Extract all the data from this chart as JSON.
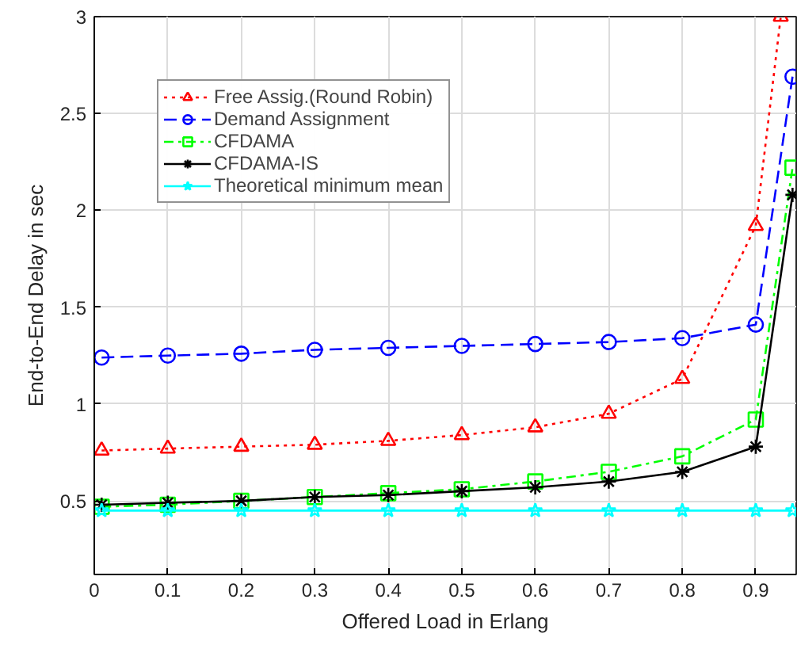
{
  "chart_data": {
    "type": "line",
    "xlabel": "Offered Load in Erlang",
    "ylabel": "End-to-End Delay in sec",
    "x": [
      0.01,
      0.1,
      0.2,
      0.3,
      0.4,
      0.5,
      0.6,
      0.7,
      0.8,
      0.9,
      0.95
    ],
    "series": [
      {
        "name": "Free Assig.(Round Robin)",
        "color": "#ff0000",
        "marker": "triangle",
        "line_style": "dotted",
        "x": [
          0.01,
          0.1,
          0.2,
          0.3,
          0.4,
          0.5,
          0.6,
          0.7,
          0.8,
          0.9,
          0.934
        ],
        "values": [
          0.76,
          0.77,
          0.78,
          0.79,
          0.81,
          0.84,
          0.88,
          0.95,
          1.13,
          1.92,
          3.0
        ]
      },
      {
        "name": "Demand Assignment",
        "color": "#0000ff",
        "marker": "circle",
        "line_style": "dashed",
        "values": [
          1.24,
          1.25,
          1.26,
          1.28,
          1.29,
          1.3,
          1.31,
          1.32,
          1.34,
          1.41,
          2.69
        ]
      },
      {
        "name": "CFDAMA",
        "color": "#00ff00",
        "marker": "square",
        "line_style": "dashdot",
        "values": [
          0.47,
          0.48,
          0.5,
          0.52,
          0.54,
          0.56,
          0.6,
          0.65,
          0.73,
          0.92,
          2.22
        ]
      },
      {
        "name": "CFDAMA-IS",
        "color": "#000000",
        "marker": "cross",
        "line_style": "solid",
        "values": [
          0.48,
          0.49,
          0.5,
          0.52,
          0.53,
          0.55,
          0.57,
          0.6,
          0.65,
          0.78,
          2.08
        ]
      },
      {
        "name": "Theoretical minimum mean",
        "color": "#00ffff",
        "marker": "star",
        "line_style": "solid",
        "values": [
          0.45,
          0.45,
          0.45,
          0.45,
          0.45,
          0.45,
          0.45,
          0.45,
          0.45,
          0.45,
          0.45
        ]
      }
    ],
    "xlim": [
      0,
      0.955
    ],
    "ylim": [
      0.12,
      3
    ],
    "xticks": [
      0,
      0.1,
      0.2,
      0.3,
      0.4,
      0.5,
      0.6,
      0.7,
      0.8,
      0.9
    ],
    "yticks": [
      0.5,
      1,
      1.5,
      2,
      2.5,
      3
    ],
    "grid": true,
    "legend": "top left"
  }
}
